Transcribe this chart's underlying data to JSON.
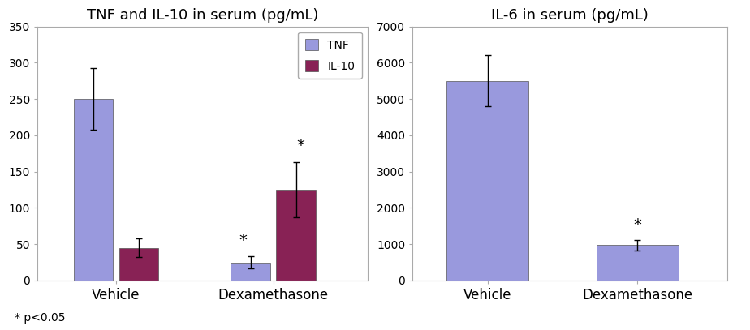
{
  "chart1": {
    "title": "TNF and IL-10 in serum (pg/mL)",
    "groups": [
      "Vehicle",
      "Dexamethasone"
    ],
    "series": {
      "TNF": {
        "values": [
          250,
          25
        ],
        "errors": [
          42,
          8
        ],
        "color": "#9999dd"
      },
      "IL-10": {
        "values": [
          45,
          125
        ],
        "errors": [
          13,
          38
        ],
        "color": "#882255"
      }
    },
    "ylim": [
      0,
      350
    ],
    "yticks": [
      0,
      50,
      100,
      150,
      200,
      250,
      300,
      350
    ],
    "legend_labels": [
      "TNF",
      "IL-10"
    ],
    "legend_colors": [
      "#9999dd",
      "#882255"
    ]
  },
  "chart2": {
    "title": "IL-6 in serum (pg/mL)",
    "groups": [
      "Vehicle",
      "Dexamethasone"
    ],
    "series": {
      "IL-6": {
        "values": [
          5500,
          975
        ],
        "errors": [
          700,
          150
        ],
        "color": "#9999dd"
      }
    },
    "ylim": [
      0,
      7000
    ],
    "yticks": [
      0,
      1000,
      2000,
      3000,
      4000,
      5000,
      6000,
      7000
    ]
  },
  "footnote": "* p<0.05",
  "bar_width": 0.25,
  "group_positions": [
    1.0,
    2.0
  ],
  "background_color": "#ffffff",
  "fontsize_title": 13,
  "fontsize_ticks": 10,
  "fontsize_legend": 10,
  "fontsize_xticklabels": 12,
  "fontsize_annot": 14,
  "border_color": "#aaaaaa"
}
